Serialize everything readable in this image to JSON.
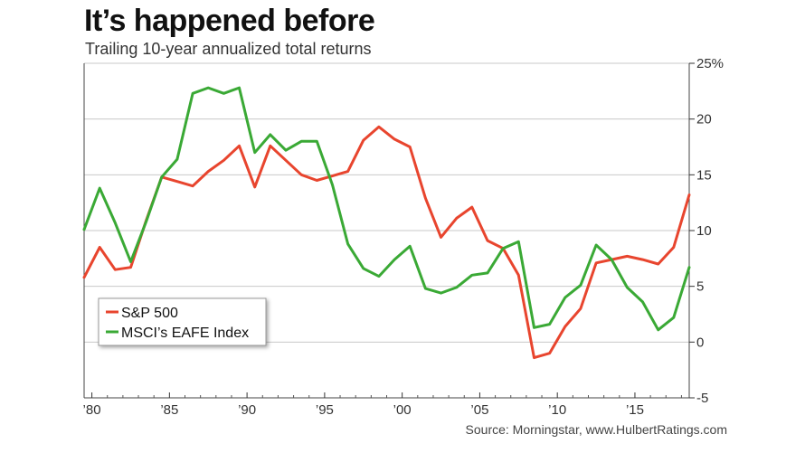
{
  "chart_data": {
    "type": "line",
    "title": "It’s happened before",
    "subtitle": "Trailing 10-year annualized total returns",
    "source": "Source: Morningstar, www.HulbertRatings.com",
    "xlim": [
      1979.5,
      2018.5
    ],
    "ylim": [
      -5,
      25
    ],
    "y_ticks": [
      -5,
      0,
      5,
      10,
      15,
      20,
      25
    ],
    "y_tick_labels": [
      "-5",
      "0",
      "5",
      "10",
      "15",
      "20",
      "25%"
    ],
    "x_ticks": [
      1980,
      1985,
      1990,
      1995,
      2000,
      2005,
      2010,
      2015
    ],
    "x_tick_labels": [
      "’80",
      "’85",
      "’90",
      "’95",
      "’00",
      "’05",
      "’10",
      "’15"
    ],
    "grid": "horizontal",
    "legend_position": "lower-left",
    "x": [
      1979.5,
      1980.5,
      1981.5,
      1982.5,
      1983.5,
      1984.5,
      1985.5,
      1986.5,
      1987.5,
      1988.5,
      1989.5,
      1990.5,
      1991.5,
      1992.5,
      1993.5,
      1994.5,
      1995.5,
      1996.5,
      1997.5,
      1998.5,
      1999.5,
      2000.5,
      2001.5,
      2002.5,
      2003.5,
      2004.5,
      2005.5,
      2006.5,
      2007.5,
      2008.5,
      2009.5,
      2010.5,
      2011.5,
      2012.5,
      2013.5,
      2014.5,
      2015.5,
      2016.5,
      2017.5,
      2018.5
    ],
    "series": [
      {
        "name": "S&P 500",
        "color": "#e8452e",
        "values": [
          5.8,
          8.5,
          6.5,
          6.7,
          10.9,
          14.8,
          14.4,
          14.0,
          15.3,
          16.3,
          17.6,
          13.9,
          17.6,
          16.3,
          15.0,
          14.5,
          14.9,
          15.3,
          18.1,
          19.3,
          18.2,
          17.5,
          12.9,
          9.4,
          11.1,
          12.1,
          9.1,
          8.4,
          6.0,
          -1.4,
          -1.0,
          1.4,
          3.0,
          7.1,
          7.4,
          7.7,
          7.4,
          7.0,
          8.5,
          13.2
        ]
      },
      {
        "name": "MSCI’s EAFE Index",
        "color": "#3aa935",
        "values": [
          10.1,
          13.8,
          10.7,
          7.2,
          10.8,
          14.8,
          16.4,
          22.3,
          22.8,
          22.3,
          22.8,
          17.0,
          18.6,
          17.2,
          18.0,
          18.0,
          14.1,
          8.8,
          6.6,
          5.9,
          7.4,
          8.6,
          4.8,
          4.4,
          4.9,
          6.0,
          6.2,
          8.4,
          9.0,
          1.3,
          1.6,
          4.0,
          5.1,
          8.7,
          7.4,
          4.9,
          3.6,
          1.1,
          2.2,
          6.7
        ]
      }
    ]
  }
}
